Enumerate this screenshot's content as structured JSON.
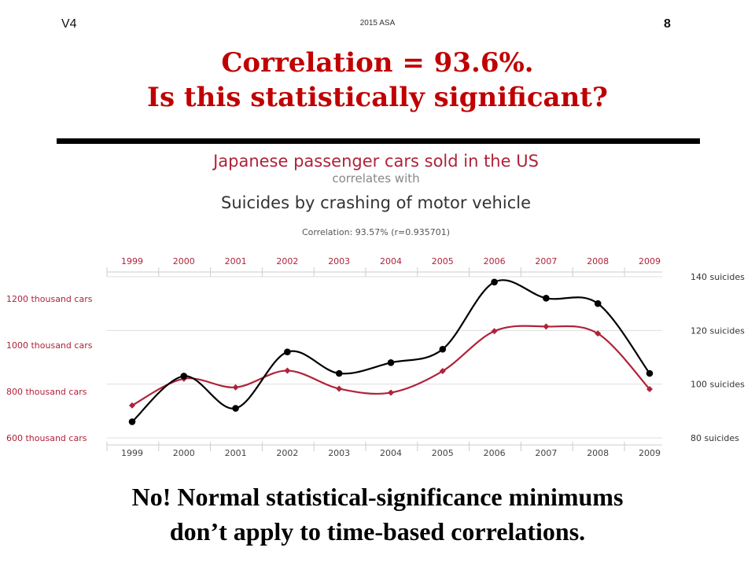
{
  "header": {
    "version": "V4",
    "footer_note": "2015 ASA",
    "slide_number": "8"
  },
  "title": {
    "line1": "Correlation = 93.6%.",
    "line2": "Is this statistically significant?"
  },
  "conclusion": {
    "line1": "No!  Normal statistical-significance minimums",
    "line2": "don’t apply to time-based correlations."
  },
  "colors": {
    "title": "#c00000",
    "cars_series": "#b0223a",
    "suicides_series": "#000000",
    "chart_title": "#b0223a",
    "grid": "#dddddd"
  },
  "chart_data": {
    "type": "line",
    "title": "Japanese passenger cars sold in the US",
    "connector": "correlates with",
    "subtitle": "Suicides by crashing of motor vehicle",
    "annotation": "Correlation: 93.57% (r=0.935701)",
    "x": [
      "1999",
      "2000",
      "2001",
      "2002",
      "2003",
      "2004",
      "2005",
      "2006",
      "2007",
      "2008",
      "2009"
    ],
    "left_axis": {
      "ticks": [
        600,
        800,
        1000,
        1200
      ],
      "tick_labels": [
        "600 thousand cars",
        "800 thousand cars",
        "1000 thousand cars",
        "1200 thousand cars"
      ],
      "ylim": [
        600,
        1250
      ]
    },
    "right_axis": {
      "ticks": [
        80,
        100,
        120,
        140
      ],
      "tick_labels": [
        "80 suicides",
        "100 suicides",
        "120 suicides",
        "140 suicides"
      ],
      "ylim": [
        80,
        140
      ]
    },
    "series": [
      {
        "axis": "left",
        "color": "#b0223a",
        "marker": "diamond",
        "values": [
          740,
          855,
          818,
          890,
          812,
          795,
          888,
          1060,
          1080,
          1050,
          810
        ]
      },
      {
        "axis": "right",
        "color": "#000000",
        "marker": "circle",
        "values": [
          86,
          103,
          91,
          112,
          104,
          108,
          113,
          138,
          132,
          130,
          104
        ]
      }
    ],
    "grid": true,
    "legend": "none"
  }
}
